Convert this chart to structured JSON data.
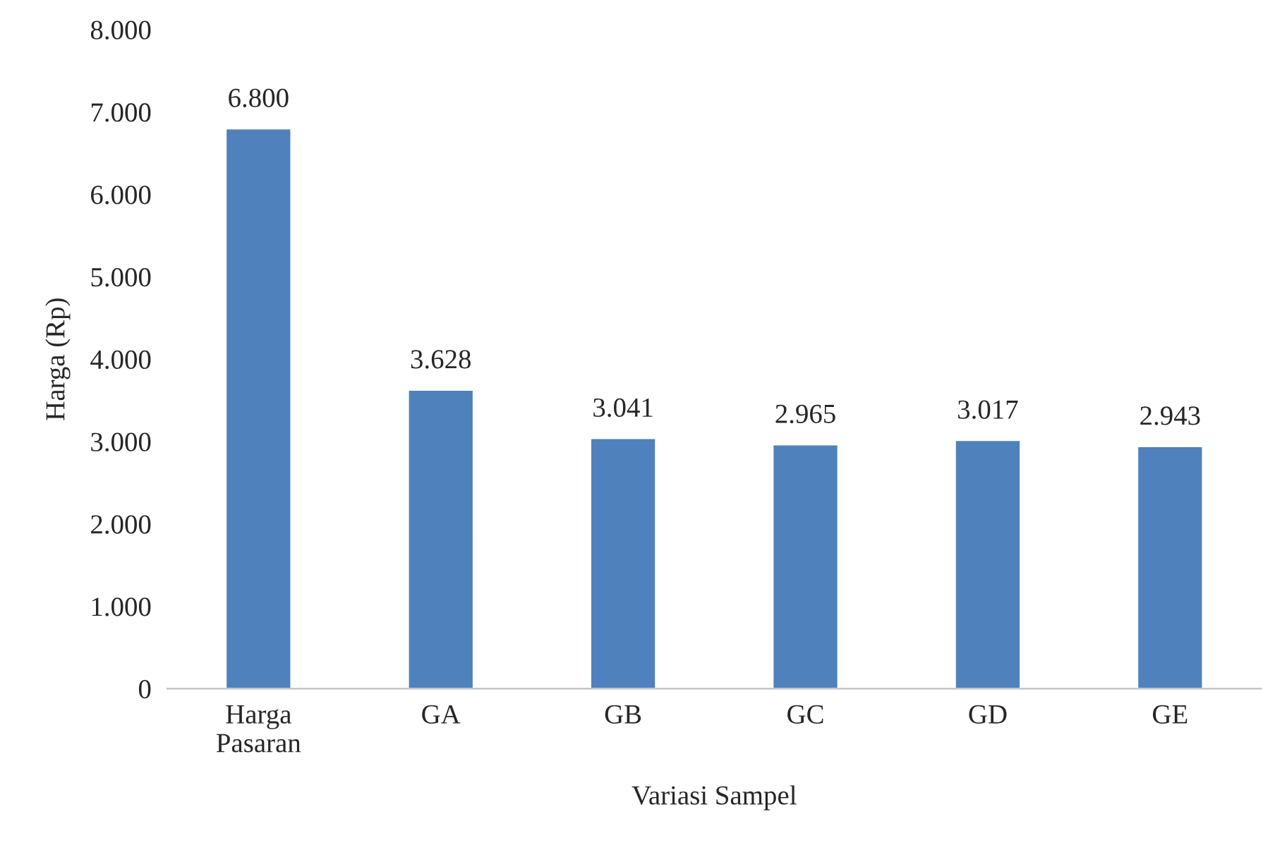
{
  "chart_data": {
    "type": "bar",
    "xlabel": "Variasi Sampel",
    "ylabel": "Harga (Rp)",
    "categories": [
      "Harga\nPasaran",
      "GA",
      "GB",
      "GC",
      "GD",
      "GE"
    ],
    "values": [
      6800,
      3628,
      3041,
      2965,
      3017,
      2943
    ],
    "value_labels": [
      "6.800",
      "3.628",
      "3.041",
      "2.965",
      "3.017",
      "2.943"
    ],
    "color": "#4f81bd",
    "ylim": [
      0,
      8000
    ],
    "yticks": [
      {
        "value": 0,
        "label": "0"
      },
      {
        "value": 1000,
        "label": "1.000"
      },
      {
        "value": 2000,
        "label": "2.000"
      },
      {
        "value": 3000,
        "label": "3.000"
      },
      {
        "value": 4000,
        "label": "4.000"
      },
      {
        "value": 5000,
        "label": "5.000"
      },
      {
        "value": 6000,
        "label": "6.000"
      },
      {
        "value": 7000,
        "label": "7.000"
      },
      {
        "value": 8000,
        "label": "8.000"
      }
    ],
    "grid": false,
    "legend": false
  }
}
